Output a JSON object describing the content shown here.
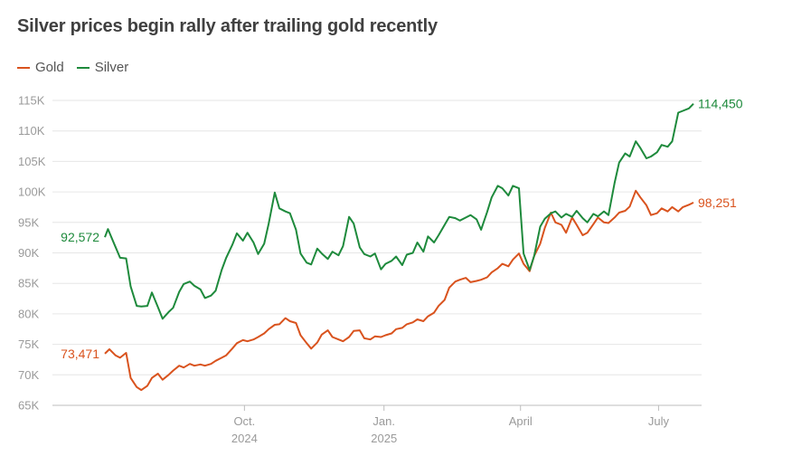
{
  "title": "Silver prices begin rally after trailing gold recently",
  "legend": [
    {
      "name": "Gold",
      "color": "#d9531e"
    },
    {
      "name": "Silver",
      "color": "#1e8a3c"
    }
  ],
  "chart_data": {
    "type": "line",
    "title": "Silver prices begin rally after trailing gold recently",
    "xlabel": "",
    "ylabel": "",
    "ylim": [
      65000,
      115000
    ],
    "xlim": [
      "2024-07-01",
      "2025-07-24"
    ],
    "grid": true,
    "legend_position": "top-left",
    "y_ticks": [
      {
        "value": 65000,
        "label": "65K"
      },
      {
        "value": 70000,
        "label": "70K"
      },
      {
        "value": 75000,
        "label": "75K"
      },
      {
        "value": 80000,
        "label": "80K"
      },
      {
        "value": 85000,
        "label": "85K"
      },
      {
        "value": 90000,
        "label": "90K"
      },
      {
        "value": 95000,
        "label": "95K"
      },
      {
        "value": 100000,
        "label": "100K"
      },
      {
        "value": 105000,
        "label": "105K"
      },
      {
        "value": 110000,
        "label": "110K"
      },
      {
        "value": 115000,
        "label": "115K"
      }
    ],
    "x_ticks": [
      {
        "date": "2024-10-01",
        "label": "Oct.",
        "year": "2024"
      },
      {
        "date": "2025-01-01",
        "label": "Jan.",
        "year": "2025"
      },
      {
        "date": "2025-04-01",
        "label": "April",
        "year": ""
      },
      {
        "date": "2025-07-01",
        "label": "July",
        "year": ""
      }
    ],
    "series": [
      {
        "name": "Gold",
        "color": "#d9531e",
        "start_label": "73,471",
        "end_label": "98,251",
        "points": [
          [
            "2024-07-01",
            73471
          ],
          [
            "2024-07-04",
            74200
          ],
          [
            "2024-07-08",
            73200
          ],
          [
            "2024-07-11",
            72800
          ],
          [
            "2024-07-15",
            73600
          ],
          [
            "2024-07-18",
            69500
          ],
          [
            "2024-07-22",
            68000
          ],
          [
            "2024-07-25",
            67500
          ],
          [
            "2024-07-29",
            68200
          ],
          [
            "2024-08-01",
            69500
          ],
          [
            "2024-08-05",
            70200
          ],
          [
            "2024-08-08",
            69200
          ],
          [
            "2024-08-12",
            70000
          ],
          [
            "2024-08-15",
            70700
          ],
          [
            "2024-08-19",
            71500
          ],
          [
            "2024-08-22",
            71200
          ],
          [
            "2024-08-26",
            71800
          ],
          [
            "2024-08-29",
            71500
          ],
          [
            "2024-09-02",
            71700
          ],
          [
            "2024-09-05",
            71500
          ],
          [
            "2024-09-09",
            71800
          ],
          [
            "2024-09-12",
            72300
          ],
          [
            "2024-09-16",
            72800
          ],
          [
            "2024-09-19",
            73200
          ],
          [
            "2024-09-23",
            74300
          ],
          [
            "2024-09-26",
            75200
          ],
          [
            "2024-09-30",
            75700
          ],
          [
            "2024-10-03",
            75500
          ],
          [
            "2024-10-07",
            75800
          ],
          [
            "2024-10-10",
            76200
          ],
          [
            "2024-10-14",
            76800
          ],
          [
            "2024-10-17",
            77500
          ],
          [
            "2024-10-21",
            78200
          ],
          [
            "2024-10-24",
            78300
          ],
          [
            "2024-10-28",
            79300
          ],
          [
            "2024-10-31",
            78800
          ],
          [
            "2024-11-04",
            78500
          ],
          [
            "2024-11-07",
            76500
          ],
          [
            "2024-11-11",
            75200
          ],
          [
            "2024-11-14",
            74300
          ],
          [
            "2024-11-18",
            75300
          ],
          [
            "2024-11-21",
            76600
          ],
          [
            "2024-11-25",
            77300
          ],
          [
            "2024-11-28",
            76200
          ],
          [
            "2024-12-02",
            75800
          ],
          [
            "2024-12-05",
            75500
          ],
          [
            "2024-12-09",
            76200
          ],
          [
            "2024-12-12",
            77200
          ],
          [
            "2024-12-16",
            77300
          ],
          [
            "2024-12-19",
            76000
          ],
          [
            "2024-12-23",
            75800
          ],
          [
            "2024-12-26",
            76300
          ],
          [
            "2024-12-30",
            76200
          ],
          [
            "2025-01-02",
            76500
          ],
          [
            "2025-01-06",
            76800
          ],
          [
            "2025-01-09",
            77500
          ],
          [
            "2025-01-13",
            77700
          ],
          [
            "2025-01-16",
            78300
          ],
          [
            "2025-01-20",
            78600
          ],
          [
            "2025-01-23",
            79100
          ],
          [
            "2025-01-27",
            78800
          ],
          [
            "2025-01-30",
            79600
          ],
          [
            "2025-02-03",
            80200
          ],
          [
            "2025-02-06",
            81300
          ],
          [
            "2025-02-10",
            82300
          ],
          [
            "2025-02-13",
            84300
          ],
          [
            "2025-02-17",
            85300
          ],
          [
            "2025-02-20",
            85600
          ],
          [
            "2025-02-24",
            85900
          ],
          [
            "2025-02-27",
            85200
          ],
          [
            "2025-03-03",
            85400
          ],
          [
            "2025-03-06",
            85600
          ],
          [
            "2025-03-10",
            86000
          ],
          [
            "2025-03-13",
            86800
          ],
          [
            "2025-03-17",
            87500
          ],
          [
            "2025-03-20",
            88200
          ],
          [
            "2025-03-24",
            87800
          ],
          [
            "2025-03-27",
            88900
          ],
          [
            "2025-03-31",
            89900
          ],
          [
            "2025-04-03",
            88200
          ],
          [
            "2025-04-07",
            87000
          ],
          [
            "2025-04-10",
            89500
          ],
          [
            "2025-04-14",
            91500
          ],
          [
            "2025-04-17",
            94100
          ],
          [
            "2025-04-21",
            96600
          ],
          [
            "2025-04-24",
            95000
          ],
          [
            "2025-04-28",
            94600
          ],
          [
            "2025-05-01",
            93300
          ],
          [
            "2025-05-05",
            95800
          ],
          [
            "2025-05-08",
            94600
          ],
          [
            "2025-05-12",
            92900
          ],
          [
            "2025-05-15",
            93300
          ],
          [
            "2025-05-19",
            94700
          ],
          [
            "2025-05-22",
            95800
          ],
          [
            "2025-05-26",
            95000
          ],
          [
            "2025-05-29",
            94900
          ],
          [
            "2025-06-02",
            95800
          ],
          [
            "2025-06-05",
            96600
          ],
          [
            "2025-06-09",
            96900
          ],
          [
            "2025-06-12",
            97600
          ],
          [
            "2025-06-16",
            100200
          ],
          [
            "2025-06-19",
            99100
          ],
          [
            "2025-06-23",
            97800
          ],
          [
            "2025-06-26",
            96200
          ],
          [
            "2025-06-30",
            96500
          ],
          [
            "2025-07-03",
            97300
          ],
          [
            "2025-07-07",
            96800
          ],
          [
            "2025-07-10",
            97500
          ],
          [
            "2025-07-14",
            96800
          ],
          [
            "2025-07-17",
            97500
          ],
          [
            "2025-07-21",
            97900
          ],
          [
            "2025-07-24",
            98251
          ]
        ]
      },
      {
        "name": "Silver",
        "color": "#1e8a3c",
        "start_label": "92,572",
        "end_label": "114,450",
        "points": [
          [
            "2024-07-01",
            92572
          ],
          [
            "2024-07-03",
            93900
          ],
          [
            "2024-07-08",
            91000
          ],
          [
            "2024-07-11",
            89200
          ],
          [
            "2024-07-15",
            89100
          ],
          [
            "2024-07-18",
            84500
          ],
          [
            "2024-07-22",
            81300
          ],
          [
            "2024-07-25",
            81200
          ],
          [
            "2024-07-29",
            81300
          ],
          [
            "2024-08-01",
            83500
          ],
          [
            "2024-08-05",
            81100
          ],
          [
            "2024-08-08",
            79200
          ],
          [
            "2024-08-12",
            80300
          ],
          [
            "2024-08-15",
            81000
          ],
          [
            "2024-08-19",
            83600
          ],
          [
            "2024-08-22",
            84900
          ],
          [
            "2024-08-26",
            85300
          ],
          [
            "2024-08-29",
            84600
          ],
          [
            "2024-09-02",
            84000
          ],
          [
            "2024-09-05",
            82600
          ],
          [
            "2024-09-09",
            83000
          ],
          [
            "2024-09-12",
            83800
          ],
          [
            "2024-09-16",
            87200
          ],
          [
            "2024-09-19",
            89200
          ],
          [
            "2024-09-23",
            91300
          ],
          [
            "2024-09-26",
            93200
          ],
          [
            "2024-09-30",
            92000
          ],
          [
            "2024-10-03",
            93300
          ],
          [
            "2024-10-07",
            91700
          ],
          [
            "2024-10-10",
            89800
          ],
          [
            "2024-10-14",
            91500
          ],
          [
            "2024-10-17",
            94800
          ],
          [
            "2024-10-21",
            99900
          ],
          [
            "2024-10-24",
            97300
          ],
          [
            "2024-10-28",
            96800
          ],
          [
            "2024-10-31",
            96500
          ],
          [
            "2024-11-04",
            93800
          ],
          [
            "2024-11-07",
            89900
          ],
          [
            "2024-11-11",
            88400
          ],
          [
            "2024-11-14",
            88100
          ],
          [
            "2024-11-18",
            90700
          ],
          [
            "2024-11-21",
            89900
          ],
          [
            "2024-11-25",
            89000
          ],
          [
            "2024-11-28",
            90200
          ],
          [
            "2024-12-02",
            89600
          ],
          [
            "2024-12-05",
            91100
          ],
          [
            "2024-12-09",
            95900
          ],
          [
            "2024-12-12",
            94800
          ],
          [
            "2024-12-16",
            90900
          ],
          [
            "2024-12-19",
            89800
          ],
          [
            "2024-12-23",
            89400
          ],
          [
            "2024-12-26",
            89900
          ],
          [
            "2024-12-30",
            87300
          ],
          [
            "2025-01-02",
            88200
          ],
          [
            "2025-01-06",
            88700
          ],
          [
            "2025-01-09",
            89400
          ],
          [
            "2025-01-13",
            88000
          ],
          [
            "2025-01-16",
            89700
          ],
          [
            "2025-01-20",
            90000
          ],
          [
            "2025-01-23",
            91700
          ],
          [
            "2025-01-27",
            90200
          ],
          [
            "2025-01-30",
            92700
          ],
          [
            "2025-02-03",
            91700
          ],
          [
            "2025-02-06",
            92900
          ],
          [
            "2025-02-10",
            94600
          ],
          [
            "2025-02-13",
            95900
          ],
          [
            "2025-02-17",
            95700
          ],
          [
            "2025-02-20",
            95300
          ],
          [
            "2025-02-24",
            95800
          ],
          [
            "2025-02-27",
            96200
          ],
          [
            "2025-03-03",
            95500
          ],
          [
            "2025-03-06",
            93800
          ],
          [
            "2025-03-10",
            96700
          ],
          [
            "2025-03-13",
            99100
          ],
          [
            "2025-03-17",
            101000
          ],
          [
            "2025-03-20",
            100600
          ],
          [
            "2025-03-24",
            99400
          ],
          [
            "2025-03-27",
            101000
          ],
          [
            "2025-03-31",
            100600
          ],
          [
            "2025-04-03",
            89900
          ],
          [
            "2025-04-07",
            87200
          ],
          [
            "2025-04-10",
            89500
          ],
          [
            "2025-04-14",
            94300
          ],
          [
            "2025-04-17",
            95600
          ],
          [
            "2025-04-21",
            96500
          ],
          [
            "2025-04-24",
            96800
          ],
          [
            "2025-04-28",
            95800
          ],
          [
            "2025-05-01",
            96400
          ],
          [
            "2025-05-05",
            95900
          ],
          [
            "2025-05-08",
            96900
          ],
          [
            "2025-05-12",
            95700
          ],
          [
            "2025-05-15",
            95000
          ],
          [
            "2025-05-19",
            96400
          ],
          [
            "2025-05-22",
            96000
          ],
          [
            "2025-05-26",
            96800
          ],
          [
            "2025-05-29",
            96200
          ],
          [
            "2025-06-02",
            101500
          ],
          [
            "2025-06-05",
            104800
          ],
          [
            "2025-06-09",
            106300
          ],
          [
            "2025-06-12",
            105800
          ],
          [
            "2025-06-16",
            108300
          ],
          [
            "2025-06-19",
            107200
          ],
          [
            "2025-06-23",
            105500
          ],
          [
            "2025-06-26",
            105800
          ],
          [
            "2025-06-30",
            106500
          ],
          [
            "2025-07-03",
            107700
          ],
          [
            "2025-07-07",
            107400
          ],
          [
            "2025-07-10",
            108300
          ],
          [
            "2025-07-14",
            113000
          ],
          [
            "2025-07-17",
            113300
          ],
          [
            "2025-07-21",
            113700
          ],
          [
            "2025-07-24",
            114450
          ]
        ]
      }
    ]
  }
}
